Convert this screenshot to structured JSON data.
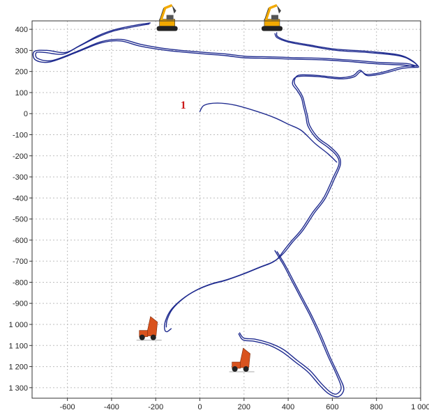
{
  "colors": {
    "track": "#1f2b8f",
    "label": "#cc1a1a",
    "excavator": "#f2a900",
    "truck": "#d9531e"
  },
  "chart_data": {
    "type": "line",
    "title": "",
    "xlabel": "",
    "ylabel": "",
    "xlim": [
      -760,
      1000
    ],
    "ylim": [
      -1350,
      440
    ],
    "grid": true,
    "legend": "none",
    "x_ticks": [
      -600,
      -400,
      -200,
      0,
      200,
      400,
      600,
      800,
      1000
    ],
    "x_tick_labels": [
      "-600",
      "-400",
      "-200",
      "0",
      "200",
      "400",
      "600",
      "800",
      "1 000"
    ],
    "y_ticks": [
      400,
      300,
      200,
      100,
      0,
      -100,
      -200,
      -300,
      -400,
      -500,
      -600,
      -700,
      -800,
      -900,
      -1000,
      -1100,
      -1200,
      -1300
    ],
    "y_tick_labels": [
      "400",
      "300",
      "200",
      "100",
      "0",
      "-100",
      "-200",
      "-300",
      "-400",
      "-500",
      "-600",
      "-700",
      "-800",
      "-900",
      "1 000",
      "1 100",
      "1 200",
      "1 300"
    ],
    "annotations": [
      {
        "text": "1",
        "x": -75,
        "y": 40
      }
    ],
    "equipment": [
      {
        "kind": "excavator",
        "x": -145,
        "y": 435
      },
      {
        "kind": "excavator",
        "x": 330,
        "y": 435
      },
      {
        "kind": "truck",
        "x": -230,
        "y": -1035
      },
      {
        "kind": "truck",
        "x": 190,
        "y": -1185
      }
    ],
    "series": [
      {
        "values": [
          [
            -225,
            430
          ],
          [
            -290,
            420
          ],
          [
            -380,
            400
          ],
          [
            -460,
            370
          ],
          [
            -540,
            325
          ],
          [
            -610,
            290
          ],
          [
            -690,
            300
          ],
          [
            -750,
            295
          ],
          [
            -745,
            255
          ],
          [
            -680,
            245
          ],
          [
            -560,
            290
          ],
          [
            -450,
            335
          ],
          [
            -360,
            345
          ],
          [
            -270,
            320
          ],
          [
            -150,
            300
          ],
          [
            0,
            285
          ],
          [
            120,
            275
          ],
          [
            200,
            265
          ],
          [
            330,
            262
          ],
          [
            430,
            258
          ],
          [
            560,
            255
          ],
          [
            700,
            245
          ],
          [
            820,
            235
          ],
          [
            930,
            230
          ],
          [
            990,
            220
          ],
          [
            960,
            250
          ],
          [
            900,
            275
          ],
          [
            760,
            290
          ],
          [
            620,
            300
          ],
          [
            500,
            320
          ],
          [
            400,
            340
          ],
          [
            350,
            360
          ],
          [
            340,
            380
          ]
        ]
      },
      {
        "values": [
          [
            -230,
            425
          ],
          [
            -300,
            412
          ],
          [
            -390,
            392
          ],
          [
            -470,
            360
          ],
          [
            -550,
            318
          ],
          [
            -620,
            282
          ],
          [
            -700,
            290
          ],
          [
            -740,
            290
          ],
          [
            -735,
            262
          ],
          [
            -670,
            252
          ],
          [
            -555,
            296
          ],
          [
            -445,
            342
          ],
          [
            -355,
            352
          ],
          [
            -265,
            328
          ],
          [
            -145,
            307
          ],
          [
            5,
            292
          ],
          [
            125,
            282
          ],
          [
            210,
            272
          ],
          [
            335,
            269
          ],
          [
            435,
            265
          ],
          [
            565,
            262
          ],
          [
            705,
            252
          ],
          [
            825,
            242
          ],
          [
            935,
            238
          ],
          [
            985,
            226
          ],
          [
            955,
            256
          ],
          [
            895,
            280
          ],
          [
            755,
            296
          ],
          [
            615,
            306
          ],
          [
            495,
            326
          ],
          [
            395,
            346
          ],
          [
            352,
            366
          ],
          [
            348,
            384
          ]
        ]
      },
      {
        "values": [
          [
            985,
            220
          ],
          [
            920,
            215
          ],
          [
            830,
            190
          ],
          [
            760,
            180
          ],
          [
            730,
            200
          ],
          [
            700,
            175
          ],
          [
            650,
            165
          ],
          [
            600,
            168
          ],
          [
            540,
            175
          ],
          [
            470,
            178
          ],
          [
            430,
            170
          ],
          [
            420,
            140
          ],
          [
            440,
            110
          ],
          [
            460,
            75
          ],
          [
            470,
            30
          ],
          [
            480,
            -10
          ],
          [
            490,
            -60
          ],
          [
            530,
            -120
          ],
          [
            580,
            -160
          ],
          [
            620,
            -200
          ],
          [
            630,
            -240
          ],
          [
            605,
            -300
          ],
          [
            560,
            -400
          ],
          [
            510,
            -470
          ],
          [
            460,
            -550
          ],
          [
            410,
            -610
          ],
          [
            380,
            -650
          ],
          [
            350,
            -690
          ],
          [
            320,
            -710
          ],
          [
            270,
            -730
          ],
          [
            200,
            -760
          ],
          [
            120,
            -790
          ],
          [
            50,
            -810
          ],
          [
            -20,
            -840
          ],
          [
            -80,
            -880
          ],
          [
            -130,
            -930
          ],
          [
            -155,
            -980
          ],
          [
            -160,
            -1020
          ],
          [
            -150,
            -1035
          ],
          [
            -130,
            -1020
          ]
        ]
      },
      {
        "values": [
          [
            980,
            228
          ],
          [
            915,
            222
          ],
          [
            825,
            196
          ],
          [
            755,
            186
          ],
          [
            725,
            206
          ],
          [
            695,
            181
          ],
          [
            645,
            171
          ],
          [
            595,
            174
          ],
          [
            535,
            181
          ],
          [
            465,
            184
          ],
          [
            437,
            176
          ],
          [
            428,
            146
          ],
          [
            447,
            114
          ],
          [
            466,
            79
          ],
          [
            477,
            33
          ],
          [
            487,
            -7
          ],
          [
            498,
            -57
          ],
          [
            537,
            -115
          ],
          [
            588,
            -155
          ],
          [
            627,
            -197
          ],
          [
            637,
            -240
          ],
          [
            613,
            -302
          ],
          [
            568,
            -402
          ],
          [
            518,
            -472
          ],
          [
            468,
            -552
          ],
          [
            418,
            -612
          ],
          [
            388,
            -652
          ],
          [
            356,
            -686
          ],
          [
            324,
            -707
          ],
          [
            274,
            -727
          ],
          [
            204,
            -757
          ],
          [
            124,
            -787
          ],
          [
            54,
            -807
          ],
          [
            -16,
            -837
          ],
          [
            -75,
            -877
          ],
          [
            -124,
            -927
          ],
          [
            -148,
            -977
          ],
          [
            -152,
            -1012
          ]
        ]
      },
      {
        "values": [
          [
            0,
            10
          ],
          [
            20,
            40
          ],
          [
            80,
            50
          ],
          [
            160,
            40
          ],
          [
            260,
            10
          ],
          [
            340,
            -20
          ],
          [
            400,
            -50
          ],
          [
            460,
            -80
          ],
          [
            520,
            -140
          ],
          [
            580,
            -190
          ],
          [
            620,
            -230
          ]
        ]
      },
      {
        "values": [
          [
            340,
            -650
          ],
          [
            380,
            -720
          ],
          [
            420,
            -800
          ],
          [
            460,
            -880
          ],
          [
            500,
            -960
          ],
          [
            540,
            -1050
          ],
          [
            580,
            -1150
          ],
          [
            620,
            -1240
          ],
          [
            640,
            -1300
          ],
          [
            620,
            -1330
          ],
          [
            590,
            -1320
          ],
          [
            550,
            -1280
          ],
          [
            500,
            -1220
          ],
          [
            440,
            -1170
          ],
          [
            380,
            -1120
          ],
          [
            320,
            -1090
          ],
          [
            250,
            -1070
          ],
          [
            200,
            -1065
          ],
          [
            180,
            -1040
          ]
        ]
      },
      {
        "values": [
          [
            350,
            -655
          ],
          [
            390,
            -725
          ],
          [
            430,
            -805
          ],
          [
            470,
            -885
          ],
          [
            510,
            -965
          ],
          [
            550,
            -1055
          ],
          [
            590,
            -1155
          ],
          [
            630,
            -1245
          ],
          [
            652,
            -1306
          ],
          [
            628,
            -1342
          ],
          [
            585,
            -1330
          ],
          [
            542,
            -1288
          ],
          [
            492,
            -1228
          ],
          [
            432,
            -1178
          ],
          [
            372,
            -1130
          ],
          [
            312,
            -1098
          ],
          [
            245,
            -1080
          ],
          [
            196,
            -1074
          ],
          [
            176,
            -1045
          ]
        ]
      }
    ]
  }
}
